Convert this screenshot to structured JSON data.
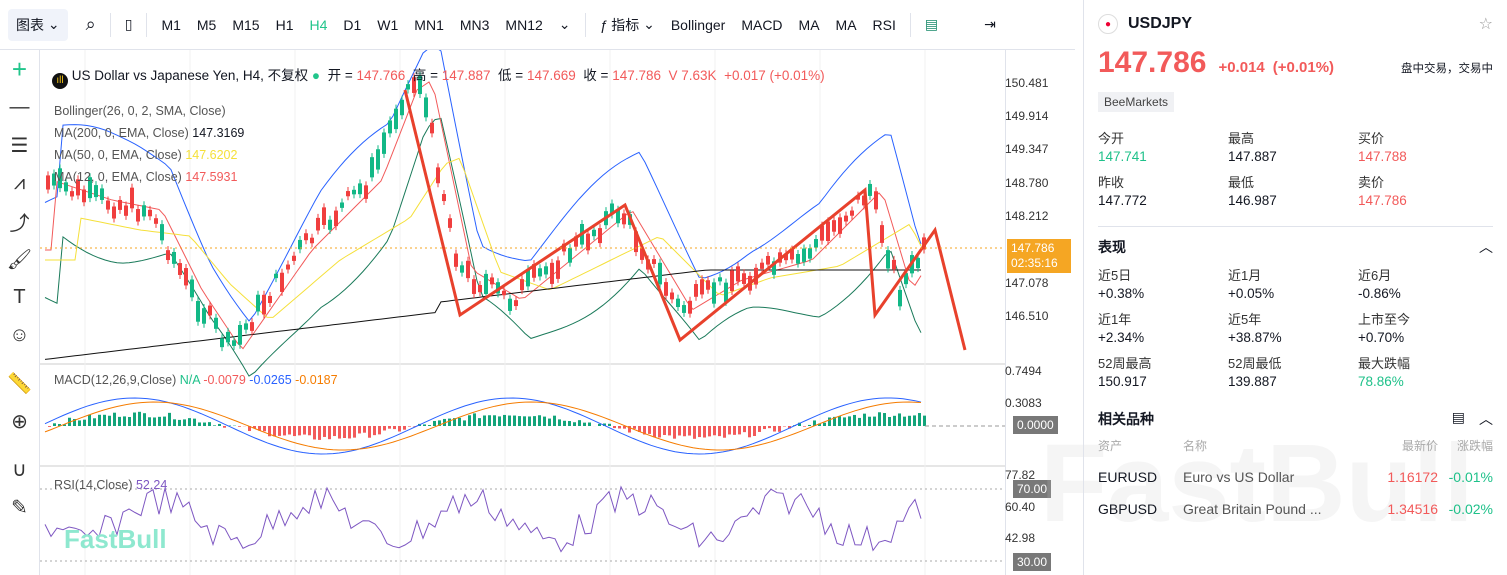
{
  "toolbar": {
    "chart_menu": "图表",
    "timeframes": [
      "M1",
      "M5",
      "M15",
      "H1",
      "H4",
      "D1",
      "W1",
      "MN1",
      "MN3",
      "MN12"
    ],
    "active": "H4",
    "indicators_label": "指标",
    "indicator_buttons": [
      "Bollinger",
      "MACD",
      "MA",
      "MA",
      "RSI"
    ]
  },
  "legend": {
    "title": "US Dollar vs Japanese Yen, H4, 不复权",
    "open_label": "开 =",
    "open": "147.766",
    "high_label": "高 =",
    "high": "147.887",
    "low_label": "低 =",
    "low": "147.669",
    "close_label": "收 =",
    "close": "147.786",
    "vol": "V 7.63K",
    "change": "+0.017 (+0.01%)",
    "indicators": [
      {
        "label": "Bollinger(26, 0, 2, SMA, Close)",
        "value": ""
      },
      {
        "label": "MA(200, 0, EMA, Close)",
        "value": "147.3169",
        "color": "#131722"
      },
      {
        "label": "MA(50, 0, EMA, Close)",
        "value": "147.6202",
        "color": "#f5e03a"
      },
      {
        "label": "MA(12, 0, EMA, Close)",
        "value": "147.5931",
        "color": "#f25a5a"
      }
    ]
  },
  "price_axis": [
    "150.481",
    "149.914",
    "149.347",
    "148.780",
    "148.212",
    "147.078",
    "146.510"
  ],
  "price_badge": {
    "price": "147.786",
    "countdown": "02:35:16",
    "color": "#f5a623"
  },
  "macd": {
    "label": "MACD(12,26,9,Close)",
    "status": "N/A",
    "v1": "-0.0079",
    "v2": "-0.0265",
    "v3": "-0.0187",
    "axis": [
      "0.7494",
      "0.3083"
    ],
    "badge": "0.0000"
  },
  "rsi": {
    "label": "RSI(14,Close)",
    "value": "52.24",
    "axis": [
      "77.82",
      "60.40",
      "42.98"
    ],
    "badge_high": "70.00",
    "badge_low": "30.00"
  },
  "watermark": "FastBull",
  "panel": {
    "symbol": "USDJPY",
    "price": "147.786",
    "change": "+0.014",
    "change_pct": "(+0.01%)",
    "status": "盘中交易，交易中",
    "broker": "BeeMarkets",
    "quote": [
      {
        "label": "今开",
        "value": "147.741",
        "color": "green"
      },
      {
        "label": "最高",
        "value": "147.887",
        "color": ""
      },
      {
        "label": "买价",
        "value": "147.788",
        "color": "red"
      },
      {
        "label": "昨收",
        "value": "147.772",
        "color": ""
      },
      {
        "label": "最低",
        "value": "146.987",
        "color": ""
      },
      {
        "label": "卖价",
        "value": "147.786",
        "color": "red"
      }
    ],
    "perf_title": "表现",
    "perf": [
      {
        "label": "近5日",
        "value": "+0.38%"
      },
      {
        "label": "近1月",
        "value": "+0.05%"
      },
      {
        "label": "近6月",
        "value": "-0.86%"
      },
      {
        "label": "近1年",
        "value": "+2.34%"
      },
      {
        "label": "近5年",
        "value": "+38.87%"
      },
      {
        "label": "上市至今",
        "value": "+0.70%"
      },
      {
        "label": "52周最高",
        "value": "150.917"
      },
      {
        "label": "52周最低",
        "value": "139.887"
      },
      {
        "label": "最大跌幅",
        "value": "78.86%",
        "color": "green"
      }
    ],
    "related_title": "相关品种",
    "related_headers": [
      "资产",
      "名称",
      "最新价",
      "涨跌幅"
    ],
    "related": [
      {
        "asset": "EURUSD",
        "name": "Euro vs US Dollar",
        "price": "1.16172",
        "chg": "-0.01%"
      },
      {
        "asset": "GBPUSD",
        "name": "Great Britain Pound ...",
        "price": "1.34516",
        "chg": "-0.02%"
      }
    ]
  }
}
